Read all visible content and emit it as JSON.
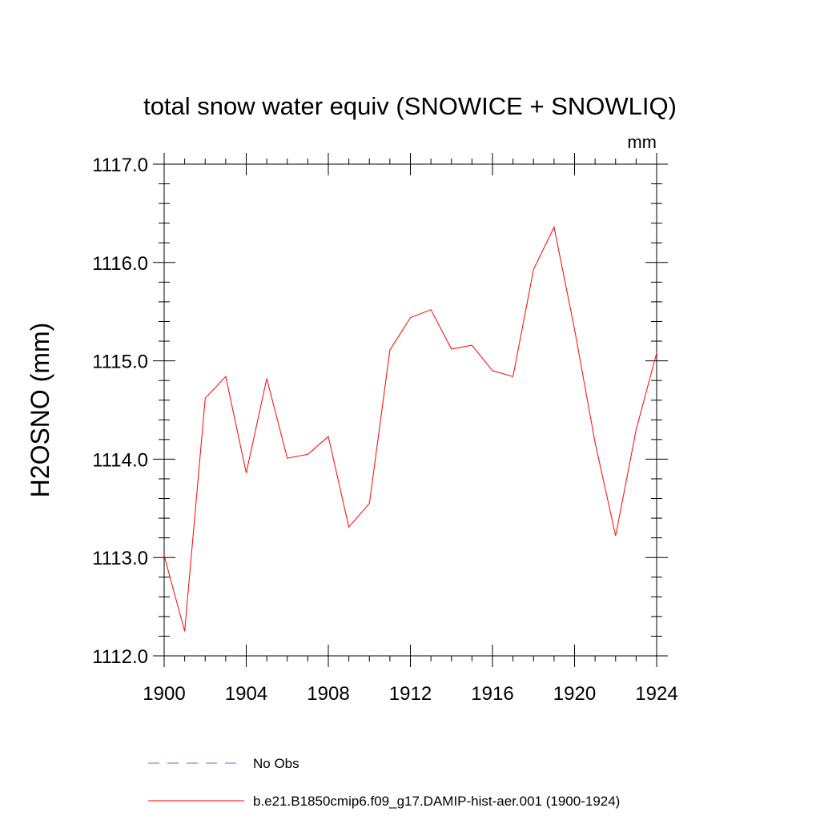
{
  "chart_data": {
    "type": "line",
    "title": "total snow water equiv (SNOWICE + SNOWLIQ)",
    "units_label": "mm",
    "ylabel": "H2OSNO  (mm)",
    "xlabel": "",
    "xlim": [
      1900,
      1924
    ],
    "ylim": [
      1112.0,
      1117.0
    ],
    "x_ticks": [
      1900,
      1904,
      1908,
      1912,
      1916,
      1920,
      1924
    ],
    "x_tick_labels": [
      "1900",
      "1904",
      "1908",
      "1912",
      "1916",
      "1920",
      "1924"
    ],
    "y_ticks": [
      1112.0,
      1113.0,
      1114.0,
      1115.0,
      1116.0,
      1117.0
    ],
    "y_tick_labels": [
      "1112.0",
      "1113.0",
      "1114.0",
      "1115.0",
      "1116.0",
      "1117.0"
    ],
    "grid": false,
    "legend_position": "bottom",
    "series": [
      {
        "name": "b.e21.B1850cmip6.f09_g17.DAMIP-hist-aer.001 (1900-1924)",
        "color": "#ff0000",
        "style": "solid",
        "x": [
          1900,
          1901,
          1902,
          1903,
          1904,
          1905,
          1906,
          1907,
          1908,
          1909,
          1910,
          1911,
          1912,
          1913,
          1914,
          1915,
          1916,
          1917,
          1918,
          1919,
          1920,
          1921,
          1922,
          1923,
          1924
        ],
        "values": [
          1113.02,
          1112.25,
          1114.62,
          1114.84,
          1113.86,
          1114.82,
          1114.01,
          1114.05,
          1114.23,
          1113.31,
          1113.55,
          1115.11,
          1115.44,
          1115.52,
          1115.12,
          1115.16,
          1114.9,
          1114.84,
          1115.93,
          1116.36,
          1115.32,
          1114.17,
          1113.22,
          1114.3,
          1115.08
        ]
      }
    ],
    "legend": [
      {
        "label": "No Obs",
        "color": "#6a6acc",
        "style": "dashed"
      },
      {
        "label": "b.e21.B1850cmip6.f09_g17.DAMIP-hist-aer.001 (1900-1924)",
        "color": "#ff0000",
        "style": "solid"
      }
    ]
  }
}
